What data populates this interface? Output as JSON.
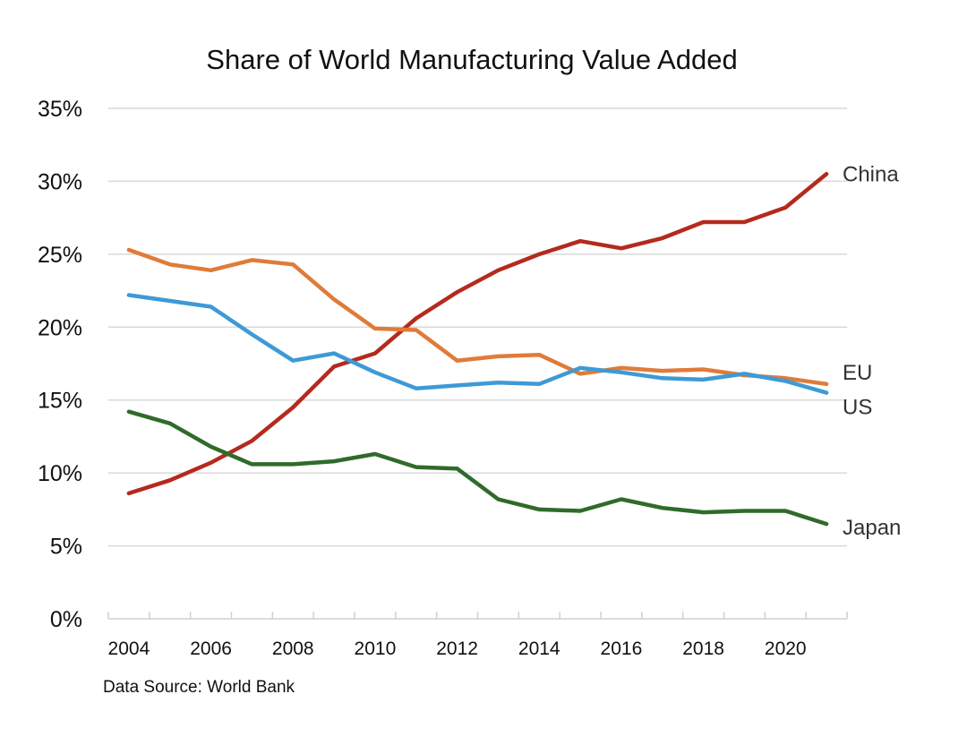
{
  "chart_data": {
    "type": "line",
    "title": "Share of World Manufacturing Value Added",
    "xlabel": "",
    "ylabel": "",
    "source": "Data Source: World Bank",
    "x": [
      2004,
      2005,
      2006,
      2007,
      2008,
      2009,
      2010,
      2011,
      2012,
      2013,
      2014,
      2015,
      2016,
      2017,
      2018,
      2019,
      2020,
      2021
    ],
    "x_tick_labels": [
      "2004",
      "2006",
      "2008",
      "2010",
      "2012",
      "2014",
      "2016",
      "2018",
      "2020"
    ],
    "ylim": [
      0,
      35
    ],
    "y_ticks": [
      0,
      5,
      10,
      15,
      20,
      25,
      30,
      35
    ],
    "y_tick_labels": [
      "0%",
      "5%",
      "10%",
      "15%",
      "20%",
      "25%",
      "30%",
      "35%"
    ],
    "grid": true,
    "legend": "direct labels at right end of lines",
    "series": [
      {
        "name": "China",
        "color": "#B52A1E",
        "values": [
          8.6,
          9.5,
          10.7,
          12.2,
          14.5,
          17.3,
          18.2,
          20.6,
          22.4,
          23.9,
          25.0,
          25.9,
          25.4,
          26.1,
          27.2,
          27.2,
          28.2,
          30.5
        ]
      },
      {
        "name": "EU",
        "color": "#E07B39",
        "values": [
          25.3,
          24.3,
          23.9,
          24.6,
          24.3,
          21.9,
          19.9,
          19.8,
          17.7,
          18.0,
          18.1,
          16.8,
          17.2,
          17.0,
          17.1,
          16.7,
          16.5,
          16.1
        ]
      },
      {
        "name": "US",
        "color": "#3E9AD6",
        "values": [
          22.2,
          21.8,
          21.4,
          19.5,
          17.7,
          18.2,
          16.9,
          15.8,
          16.0,
          16.2,
          16.1,
          17.2,
          16.9,
          16.5,
          16.4,
          16.8,
          16.3,
          15.5
        ]
      },
      {
        "name": "Japan",
        "color": "#2F6B2A",
        "values": [
          14.2,
          13.4,
          11.8,
          10.6,
          10.6,
          10.8,
          11.3,
          10.4,
          10.3,
          8.2,
          7.5,
          7.4,
          8.2,
          7.6,
          7.3,
          7.4,
          7.4,
          6.5
        ]
      }
    ]
  }
}
